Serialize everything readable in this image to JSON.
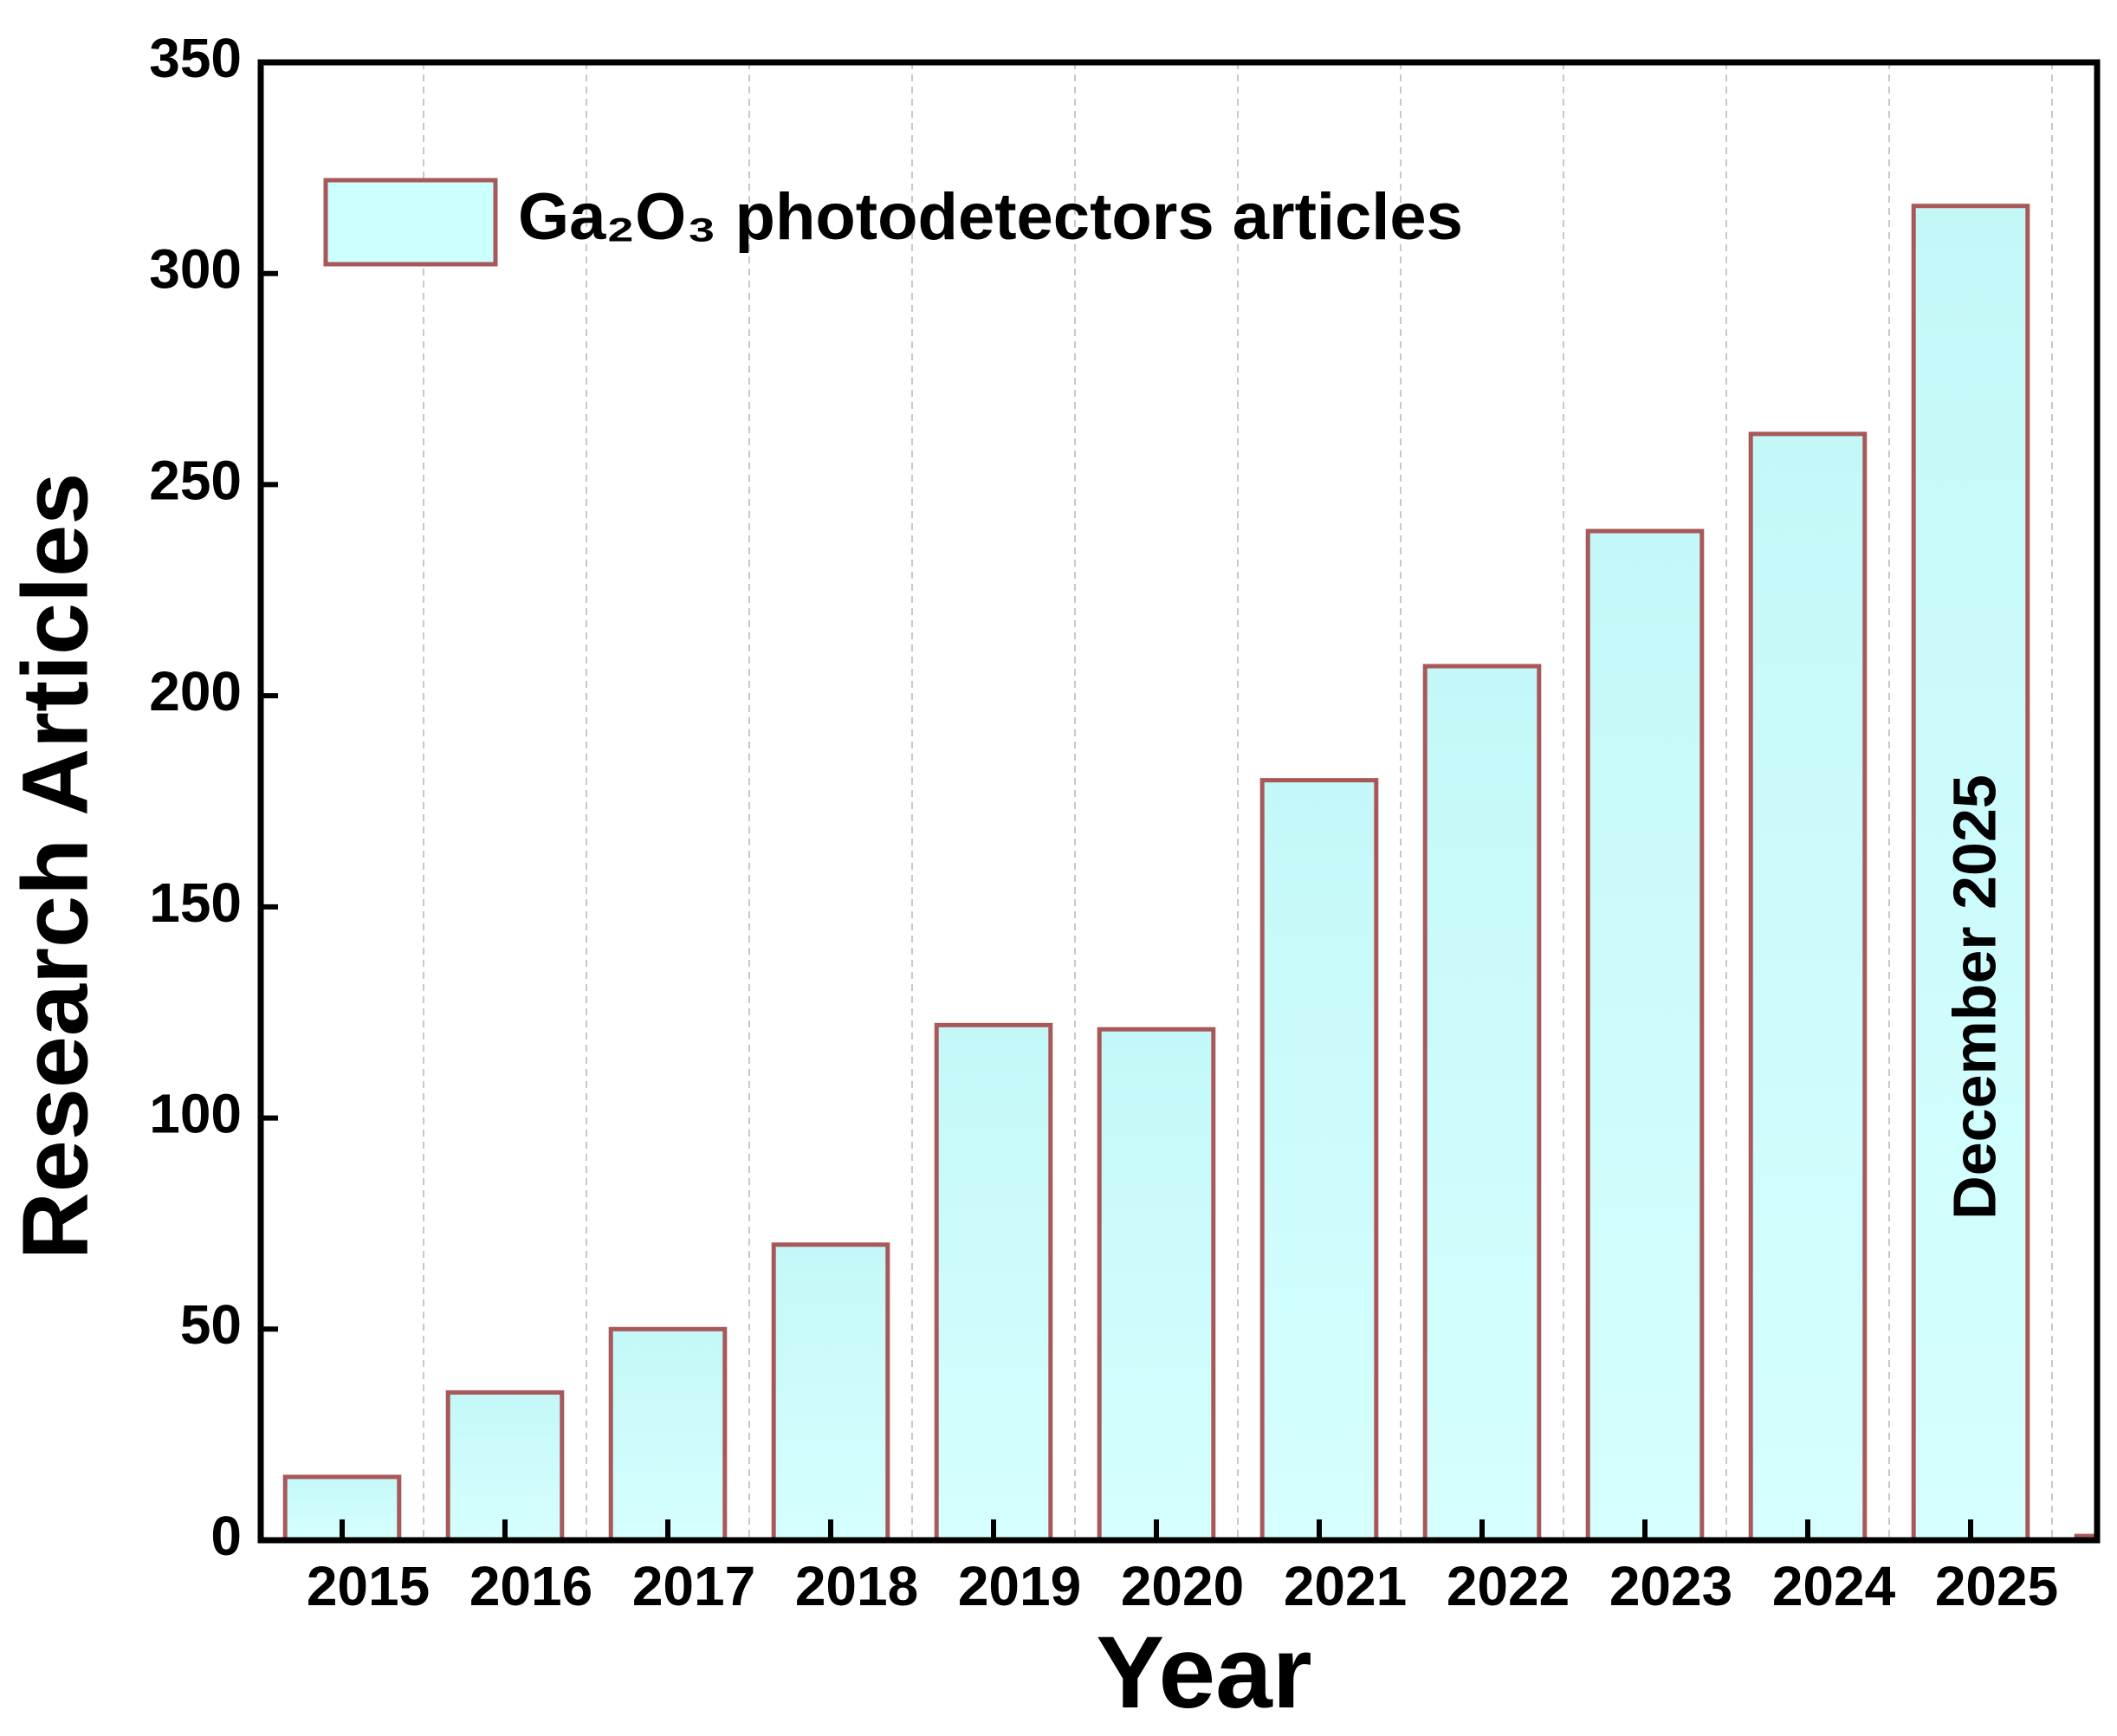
{
  "chart_data": {
    "type": "bar",
    "x_label": "Year",
    "y_label": "Research Articles",
    "categories": [
      "2015",
      "2016",
      "2017",
      "2018",
      "2019",
      "2020",
      "2021",
      "2022",
      "2023",
      "2024",
      "2025",
      null
    ],
    "series": [
      {
        "name": "Ga₂O₃ photodetectors articles",
        "color": "#ccffff",
        "edgecolor": "#a85858",
        "values": [
          15,
          35,
          50,
          70,
          122,
          121,
          180,
          207,
          239,
          262,
          316,
          1
        ]
      }
    ],
    "annotation": "December 2025",
    "ylim": [
      0,
      350
    ],
    "yticks": [
      0,
      50,
      100,
      150,
      200,
      250,
      300,
      350
    ],
    "grid": "x",
    "legend": "upper left"
  }
}
